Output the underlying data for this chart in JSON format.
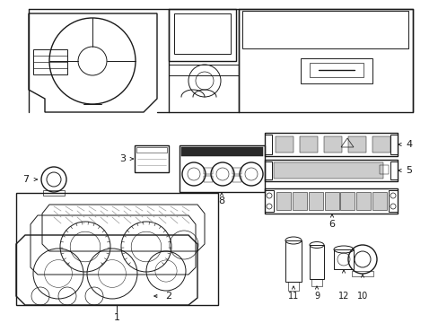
{
  "background_color": "#ffffff",
  "line_color": "#1a1a1a",
  "gray_light": "#cccccc",
  "gray_med": "#999999",
  "gray_dark": "#555555"
}
